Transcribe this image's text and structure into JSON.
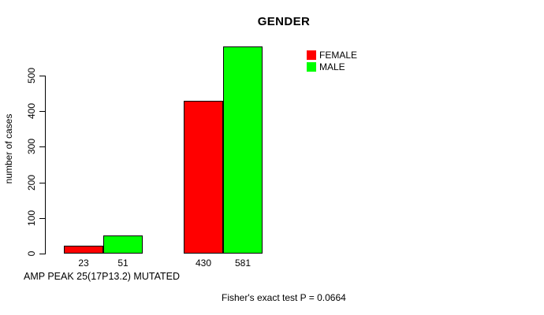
{
  "chart_data": {
    "type": "bar",
    "title": "GENDER",
    "ylabel": "number of cases",
    "xlabel": "",
    "ylim": [
      0,
      600
    ],
    "yticks": [
      0,
      100,
      200,
      300,
      400,
      500
    ],
    "grid": false,
    "legend_position": "top-right",
    "series": [
      {
        "name": "FEMALE",
        "color": "#ff0000",
        "values": [
          23,
          430
        ]
      },
      {
        "name": "MALE",
        "color": "#00ff00",
        "values": [
          51,
          581
        ]
      }
    ],
    "bar_value_labels": [
      [
        "23",
        "51"
      ],
      [
        "430",
        "581"
      ]
    ],
    "bar_border_color": "#000000",
    "axis_color": "#000000",
    "annotations": {
      "bottom_left": "AMP PEAK 25(17P13.2) MUTATED",
      "stat_note": "Fisher's exact test P = 0.0664"
    }
  }
}
